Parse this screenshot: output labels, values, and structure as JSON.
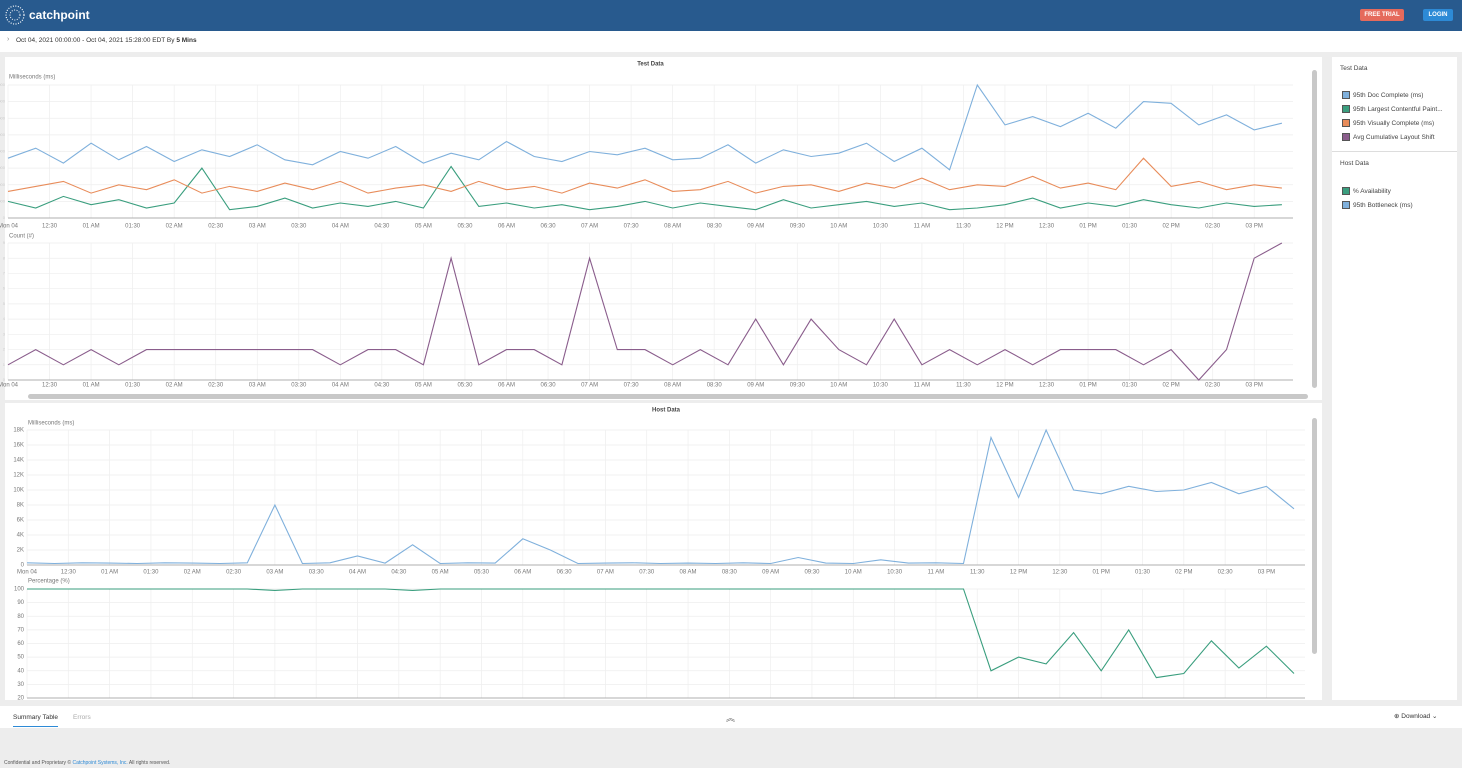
{
  "header": {
    "logo": "catchpoint",
    "free_trial": "FREE TRIAL",
    "login": "LOGIN"
  },
  "subheader": {
    "range": "Oct 04, 2021 00:00:00 - Oct 04, 2021 15:28:00 EDT By",
    "interval": "5 Mins"
  },
  "sidebar": {
    "host_heading": "Host Data"
  },
  "bottom": {
    "tabs": [
      "Summary Table",
      "Errors"
    ],
    "download": "Download"
  },
  "footer": {
    "prefix": "Confidential and Proprietary ©",
    "company": "Catchpoint Systems, Inc.",
    "suffix": "All rights reserved."
  },
  "chart_data": [
    {
      "type": "line",
      "title": "Test Data",
      "y_label": "Milliseconds (ms)",
      "grid": true,
      "xlim": [
        0,
        928
      ],
      "ylim": [
        0,
        8000
      ],
      "yticks": [
        0,
        1000,
        2000,
        3000,
        4000,
        5000,
        6000,
        7000,
        8000
      ],
      "xticks": [
        {
          "value": 0,
          "label": "Mon 04"
        },
        {
          "value": 30,
          "label": "12:30"
        },
        {
          "value": 60,
          "label": "01 AM"
        },
        {
          "value": 90,
          "label": "01:30"
        },
        {
          "value": 120,
          "label": "02 AM"
        },
        {
          "value": 150,
          "label": "02:30"
        },
        {
          "value": 180,
          "label": "03 AM"
        },
        {
          "value": 210,
          "label": "03:30"
        },
        {
          "value": 240,
          "label": "04 AM"
        },
        {
          "value": 270,
          "label": "04:30"
        },
        {
          "value": 300,
          "label": "05 AM"
        },
        {
          "value": 330,
          "label": "05:30"
        },
        {
          "value": 360,
          "label": "06 AM"
        },
        {
          "value": 390,
          "label": "06:30"
        },
        {
          "value": 420,
          "label": "07 AM"
        },
        {
          "value": 450,
          "label": "07:30"
        },
        {
          "value": 480,
          "label": "08 AM"
        },
        {
          "value": 510,
          "label": "08:30"
        },
        {
          "value": 540,
          "label": "09 AM"
        },
        {
          "value": 570,
          "label": "09:30"
        },
        {
          "value": 600,
          "label": "10 AM"
        },
        {
          "value": 630,
          "label": "10:30"
        },
        {
          "value": 660,
          "label": "11 AM"
        },
        {
          "value": 690,
          "label": "11:30"
        },
        {
          "value": 720,
          "label": "12 PM"
        },
        {
          "value": 750,
          "label": "12:30"
        },
        {
          "value": 780,
          "label": "01 PM"
        },
        {
          "value": 810,
          "label": "01:30"
        },
        {
          "value": 840,
          "label": "02 PM"
        },
        {
          "value": 870,
          "label": "02:30"
        },
        {
          "value": 900,
          "label": "03 PM"
        }
      ],
      "x": [
        0,
        20,
        40,
        60,
        80,
        100,
        120,
        140,
        160,
        180,
        200,
        220,
        240,
        260,
        280,
        300,
        320,
        340,
        360,
        380,
        400,
        420,
        440,
        460,
        480,
        500,
        520,
        540,
        560,
        580,
        600,
        620,
        640,
        660,
        680,
        700,
        720,
        740,
        760,
        780,
        800,
        820,
        840,
        860,
        880,
        900,
        920
      ],
      "series": [
        {
          "name": "95th Doc Complete (ms)",
          "color": "#7fb0dc",
          "values": [
            3600,
            4200,
            3300,
            4500,
            3500,
            4300,
            3400,
            4100,
            3700,
            4400,
            3500,
            3200,
            4000,
            3600,
            4300,
            3300,
            3900,
            3500,
            4600,
            3700,
            3400,
            4000,
            3800,
            4200,
            3500,
            3600,
            4400,
            3300,
            4100,
            3700,
            3900,
            4500,
            3400,
            4200,
            2900,
            8000,
            5600,
            6100,
            5500,
            6300,
            5400,
            7000,
            6900,
            5600,
            6200,
            5300,
            5700
          ]
        },
        {
          "name": "95th Largest Contentful Paint...",
          "color": "#3a9e7e",
          "values": [
            1000,
            600,
            1300,
            800,
            1100,
            600,
            900,
            3000,
            500,
            700,
            1200,
            600,
            900,
            700,
            1000,
            600,
            3100,
            700,
            900,
            600,
            800,
            500,
            700,
            1000,
            600,
            900,
            700,
            500,
            1100,
            600,
            800,
            1000,
            700,
            900,
            500,
            600,
            800,
            1200,
            600,
            900,
            700,
            1100,
            800,
            600,
            900,
            700,
            800
          ]
        },
        {
          "name": "95th Visually Complete (ms)",
          "color": "#e88c5a",
          "values": [
            1600,
            1900,
            2200,
            1500,
            2000,
            1700,
            2300,
            1500,
            1900,
            1600,
            2100,
            1700,
            2200,
            1500,
            1800,
            2000,
            1600,
            2200,
            1700,
            1900,
            1500,
            2100,
            1800,
            2300,
            1600,
            1700,
            2200,
            1500,
            1900,
            2000,
            1600,
            2100,
            1800,
            2400,
            1700,
            2000,
            1900,
            2500,
            1800,
            2100,
            1700,
            3600,
            1900,
            2200,
            1700,
            2000,
            1800
          ]
        }
      ]
    },
    {
      "type": "line",
      "y_label": "Count (#)",
      "grid": true,
      "xlim": [
        0,
        928
      ],
      "ylim": [
        0,
        9
      ],
      "yticks": [
        0,
        1,
        2,
        3,
        4,
        5,
        6,
        7,
        8,
        9
      ],
      "xticks": [
        {
          "value": 0,
          "label": "Mon 04"
        },
        {
          "value": 30,
          "label": "12:30"
        },
        {
          "value": 60,
          "label": "01 AM"
        },
        {
          "value": 90,
          "label": "01:30"
        },
        {
          "value": 120,
          "label": "02 AM"
        },
        {
          "value": 150,
          "label": "02:30"
        },
        {
          "value": 180,
          "label": "03 AM"
        },
        {
          "value": 210,
          "label": "03:30"
        },
        {
          "value": 240,
          "label": "04 AM"
        },
        {
          "value": 270,
          "label": "04:30"
        },
        {
          "value": 300,
          "label": "05 AM"
        },
        {
          "value": 330,
          "label": "05:30"
        },
        {
          "value": 360,
          "label": "06 AM"
        },
        {
          "value": 390,
          "label": "06:30"
        },
        {
          "value": 420,
          "label": "07 AM"
        },
        {
          "value": 450,
          "label": "07:30"
        },
        {
          "value": 480,
          "label": "08 AM"
        },
        {
          "value": 510,
          "label": "08:30"
        },
        {
          "value": 540,
          "label": "09 AM"
        },
        {
          "value": 570,
          "label": "09:30"
        },
        {
          "value": 600,
          "label": "10 AM"
        },
        {
          "value": 630,
          "label": "10:30"
        },
        {
          "value": 660,
          "label": "11 AM"
        },
        {
          "value": 690,
          "label": "11:30"
        },
        {
          "value": 720,
          "label": "12 PM"
        },
        {
          "value": 750,
          "label": "12:30"
        },
        {
          "value": 780,
          "label": "01 PM"
        },
        {
          "value": 810,
          "label": "01:30"
        },
        {
          "value": 840,
          "label": "02 PM"
        },
        {
          "value": 870,
          "label": "02:30"
        },
        {
          "value": 900,
          "label": "03 PM"
        }
      ],
      "x": [
        0,
        20,
        40,
        60,
        80,
        100,
        120,
        140,
        160,
        180,
        200,
        220,
        240,
        260,
        280,
        300,
        320,
        340,
        360,
        380,
        400,
        420,
        440,
        460,
        480,
        500,
        520,
        540,
        560,
        580,
        600,
        620,
        640,
        660,
        680,
        700,
        720,
        740,
        760,
        780,
        800,
        820,
        840,
        860,
        880,
        900,
        920
      ],
      "series": [
        {
          "name": "Avg Cumulative Layout Shift",
          "color": "#8a5d8c",
          "values": [
            1,
            2,
            1,
            2,
            1,
            2,
            2,
            2,
            2,
            2,
            2,
            2,
            1,
            2,
            2,
            1,
            8,
            1,
            2,
            2,
            1,
            8,
            2,
            2,
            1,
            2,
            1,
            4,
            1,
            4,
            2,
            1,
            4,
            1,
            2,
            1,
            2,
            1,
            2,
            2,
            2,
            1,
            2,
            0,
            2,
            8,
            9
          ]
        }
      ]
    },
    {
      "type": "line",
      "title": "Host Data",
      "y_label": "Milliseconds (ms)",
      "grid": true,
      "xlim": [
        0,
        928
      ],
      "ylim": [
        0,
        18000
      ],
      "yticks": [
        0,
        {
          "value": 2000,
          "label": "2K"
        },
        {
          "value": 4000,
          "label": "4K"
        },
        {
          "value": 6000,
          "label": "6K"
        },
        {
          "value": 8000,
          "label": "8K"
        },
        {
          "value": 10000,
          "label": "10K"
        },
        {
          "value": 12000,
          "label": "12K"
        },
        {
          "value": 14000,
          "label": "14K"
        },
        {
          "value": 16000,
          "label": "16K"
        },
        {
          "value": 18000,
          "label": "18K"
        }
      ],
      "xticks": [
        {
          "value": 0,
          "label": "Mon 04"
        },
        {
          "value": 30,
          "label": "12:30"
        },
        {
          "value": 60,
          "label": "01 AM"
        },
        {
          "value": 90,
          "label": "01:30"
        },
        {
          "value": 120,
          "label": "02 AM"
        },
        {
          "value": 150,
          "label": "02:30"
        },
        {
          "value": 180,
          "label": "03 AM"
        },
        {
          "value": 210,
          "label": "03:30"
        },
        {
          "value": 240,
          "label": "04 AM"
        },
        {
          "value": 270,
          "label": "04:30"
        },
        {
          "value": 300,
          "label": "05 AM"
        },
        {
          "value": 330,
          "label": "05:30"
        },
        {
          "value": 360,
          "label": "06 AM"
        },
        {
          "value": 390,
          "label": "06:30"
        },
        {
          "value": 420,
          "label": "07 AM"
        },
        {
          "value": 450,
          "label": "07:30"
        },
        {
          "value": 480,
          "label": "08 AM"
        },
        {
          "value": 510,
          "label": "08:30"
        },
        {
          "value": 540,
          "label": "09 AM"
        },
        {
          "value": 570,
          "label": "09:30"
        },
        {
          "value": 600,
          "label": "10 AM"
        },
        {
          "value": 630,
          "label": "10:30"
        },
        {
          "value": 660,
          "label": "11 AM"
        },
        {
          "value": 690,
          "label": "11:30"
        },
        {
          "value": 720,
          "label": "12 PM"
        },
        {
          "value": 750,
          "label": "12:30"
        },
        {
          "value": 780,
          "label": "01 PM"
        },
        {
          "value": 810,
          "label": "01:30"
        },
        {
          "value": 840,
          "label": "02 PM"
        },
        {
          "value": 870,
          "label": "02:30"
        },
        {
          "value": 900,
          "label": "03 PM"
        }
      ],
      "x": [
        0,
        20,
        40,
        60,
        80,
        100,
        120,
        140,
        160,
        180,
        200,
        220,
        240,
        260,
        280,
        300,
        320,
        340,
        360,
        380,
        400,
        420,
        440,
        460,
        480,
        500,
        520,
        540,
        560,
        580,
        600,
        620,
        640,
        660,
        680,
        700,
        720,
        740,
        760,
        780,
        800,
        820,
        840,
        860,
        880,
        900,
        920
      ],
      "series": [
        {
          "name": "95th Bottleneck (ms)",
          "color": "#7fb0dc",
          "values": [
            300,
            200,
            300,
            250,
            200,
            300,
            250,
            200,
            300,
            8000,
            200,
            300,
            1200,
            250,
            2700,
            200,
            300,
            250,
            3500,
            2000,
            200,
            250,
            300,
            200,
            250,
            200,
            300,
            200,
            1000,
            250,
            200,
            700,
            250,
            300,
            200,
            17000,
            9000,
            18000,
            10000,
            9500,
            10500,
            9800,
            10000,
            11000,
            9500,
            10500,
            7500
          ]
        }
      ]
    },
    {
      "type": "line",
      "y_label": "Percentage (%)",
      "grid": true,
      "xlim": [
        0,
        928
      ],
      "ylim": [
        20,
        100
      ],
      "yticks": [
        20,
        30,
        40,
        50,
        60,
        70,
        80,
        90,
        100
      ],
      "xticks": [
        {
          "value": 0,
          "label": "Mon 04"
        },
        {
          "value": 30,
          "label": "12:30"
        },
        {
          "value": 60,
          "label": "01 AM"
        },
        {
          "value": 90,
          "label": "01:30"
        },
        {
          "value": 120,
          "label": "02 AM"
        },
        {
          "value": 150,
          "label": "02:30"
        },
        {
          "value": 180,
          "label": "03 AM"
        },
        {
          "value": 210,
          "label": "03:30"
        },
        {
          "value": 240,
          "label": "04 AM"
        },
        {
          "value": 270,
          "label": "04:30"
        },
        {
          "value": 300,
          "label": "05 AM"
        },
        {
          "value": 330,
          "label": "05:30"
        },
        {
          "value": 360,
          "label": "06 AM"
        },
        {
          "value": 390,
          "label": "06:30"
        },
        {
          "value": 420,
          "label": "07 AM"
        },
        {
          "value": 450,
          "label": "07:30"
        },
        {
          "value": 480,
          "label": "08 AM"
        },
        {
          "value": 510,
          "label": "08:30"
        },
        {
          "value": 540,
          "label": "09 AM"
        },
        {
          "value": 570,
          "label": "09:30"
        },
        {
          "value": 600,
          "label": "10 AM"
        },
        {
          "value": 630,
          "label": "10:30"
        },
        {
          "value": 660,
          "label": "11 AM"
        },
        {
          "value": 690,
          "label": "11:30"
        },
        {
          "value": 720,
          "label": "12 PM"
        },
        {
          "value": 750,
          "label": "12:30"
        },
        {
          "value": 780,
          "label": "01 PM"
        },
        {
          "value": 810,
          "label": "01:30"
        },
        {
          "value": 840,
          "label": "02 PM"
        },
        {
          "value": 870,
          "label": "02:30"
        },
        {
          "value": 900,
          "label": "03 PM"
        }
      ],
      "x": [
        0,
        20,
        40,
        60,
        80,
        100,
        120,
        140,
        160,
        180,
        200,
        220,
        240,
        260,
        280,
        300,
        320,
        340,
        360,
        380,
        400,
        420,
        440,
        460,
        480,
        500,
        520,
        540,
        560,
        580,
        600,
        620,
        640,
        660,
        680,
        700,
        720,
        740,
        760,
        780,
        800,
        820,
        840,
        860,
        880,
        900,
        920
      ],
      "series": [
        {
          "name": "% Availability",
          "color": "#3a9e7e",
          "values": [
            100,
            100,
            100,
            100,
            100,
            100,
            100,
            100,
            100,
            99,
            100,
            100,
            100,
            100,
            99,
            100,
            100,
            100,
            100,
            100,
            100,
            100,
            100,
            100,
            100,
            100,
            100,
            100,
            100,
            100,
            100,
            100,
            100,
            100,
            100,
            40,
            50,
            45,
            68,
            40,
            70,
            35,
            38,
            62,
            42,
            58,
            38
          ]
        }
      ]
    }
  ]
}
